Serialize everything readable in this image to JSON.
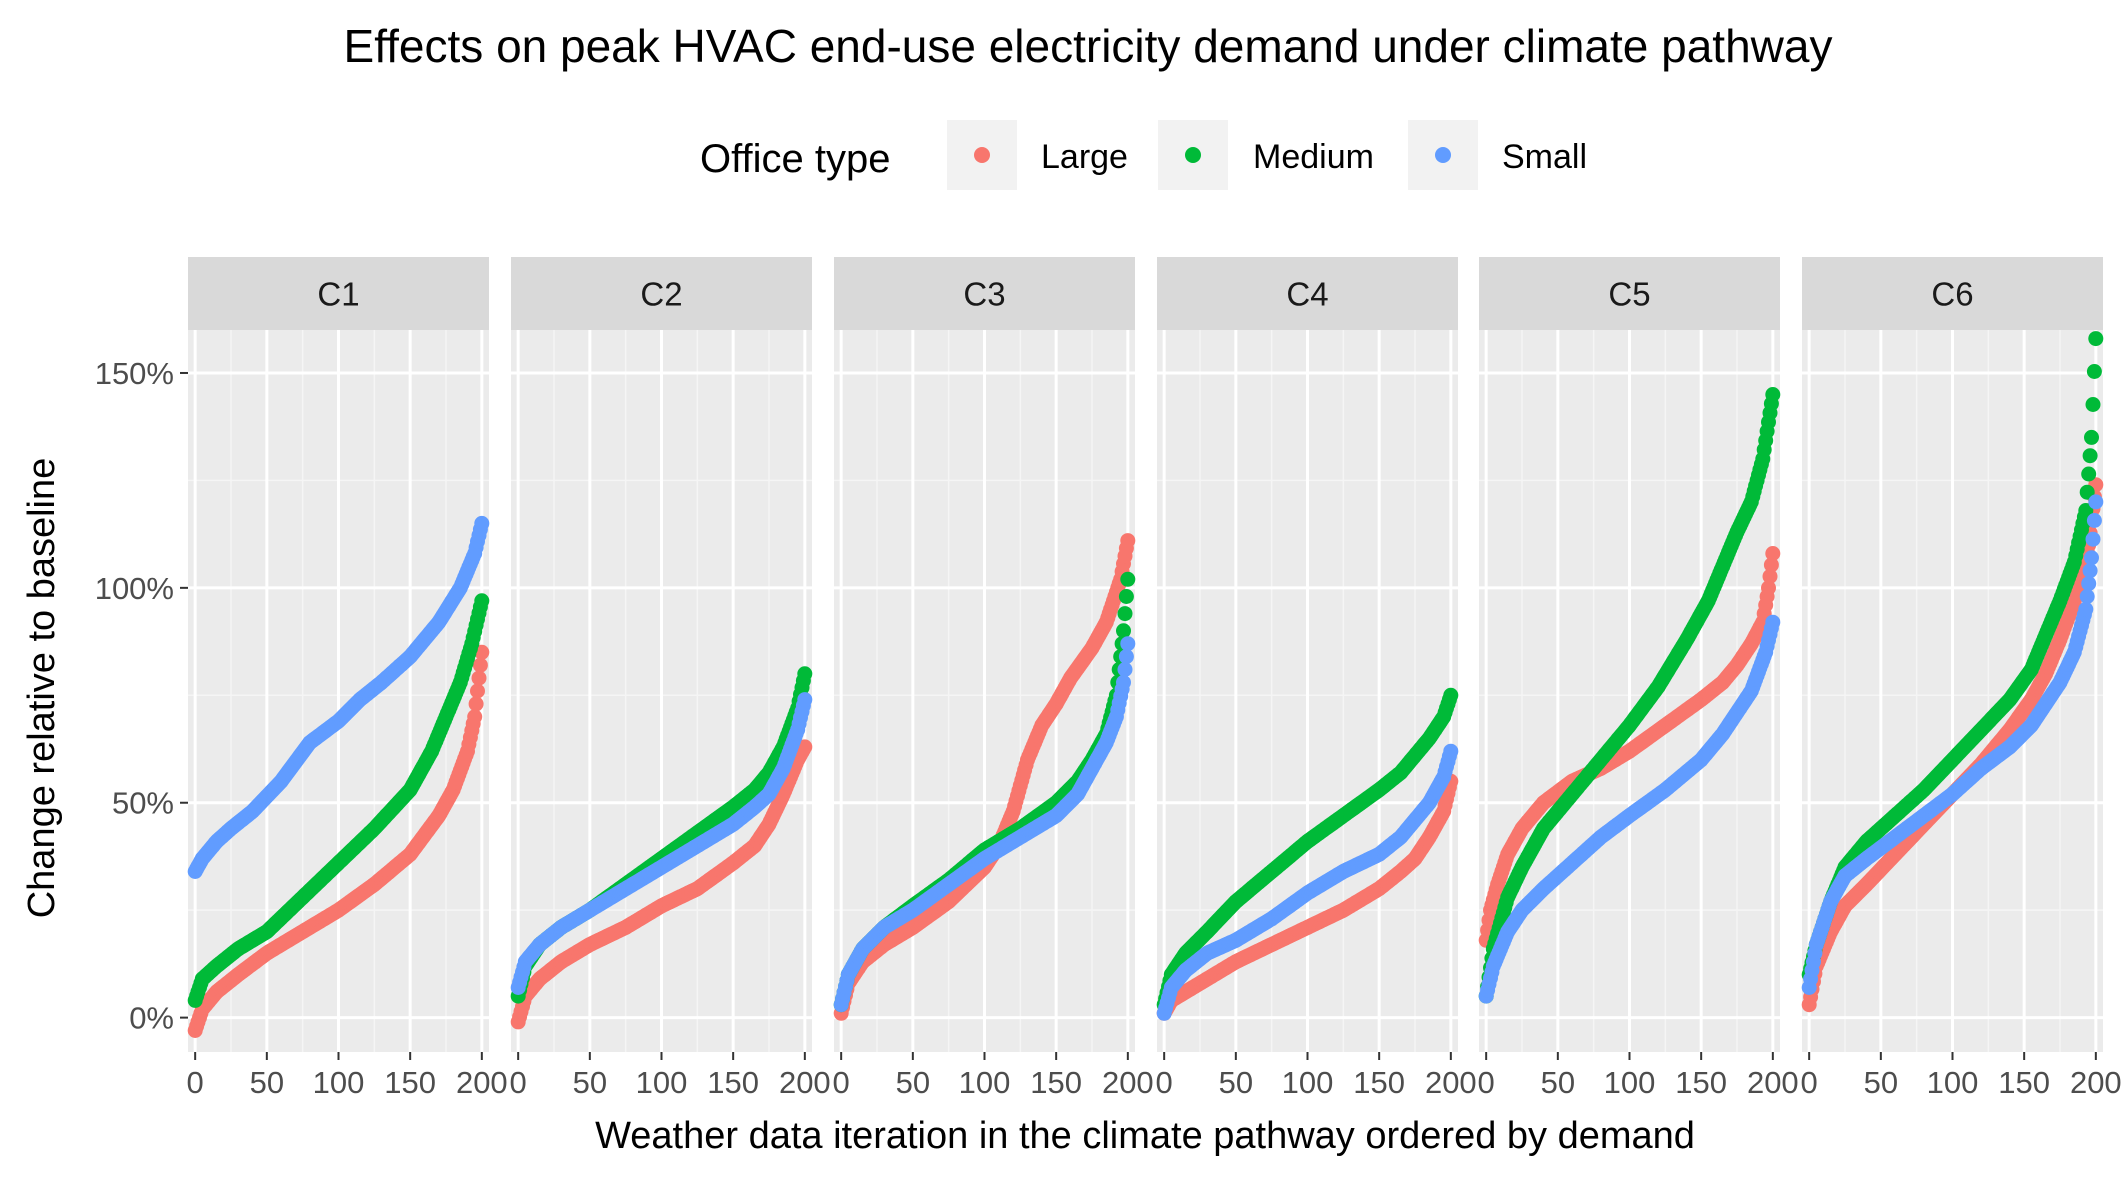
{
  "chart_data": {
    "type": "scatter",
    "title": "Effects on peak HVAC end-use electricity demand under climate pathway",
    "xlabel": "Weather data iteration in the climate pathway ordered by demand",
    "ylabel": "Change relative to baseline",
    "xlim": [
      -5,
      205
    ],
    "ylim": [
      -8,
      160
    ],
    "x_ticks": [
      0,
      50,
      100,
      150,
      200
    ],
    "x_tick_labels": [
      "0",
      "50",
      "100",
      "150",
      "200"
    ],
    "y_ticks": [
      0,
      50,
      100,
      150
    ],
    "y_tick_labels": [
      "0%",
      "50%",
      "100%",
      "150%"
    ],
    "grid": true,
    "legend": {
      "title": "Office type",
      "position": "top",
      "entries": [
        "Large",
        "Medium",
        "Small"
      ]
    },
    "facets": [
      "C1",
      "C2",
      "C3",
      "C4",
      "C5",
      "C6"
    ],
    "colors": {
      "Large": "#F8766D",
      "Medium": "#00BA38",
      "Small": "#619CFF"
    },
    "panel_background": "#EBEBEB",
    "strip_background": "#D9D9D9",
    "series": [
      {
        "facet": "C1",
        "name": "Large",
        "points": [
          [
            0,
            -3
          ],
          [
            5,
            2
          ],
          [
            15,
            6
          ],
          [
            30,
            10
          ],
          [
            50,
            15
          ],
          [
            75,
            20
          ],
          [
            100,
            25
          ],
          [
            125,
            31
          ],
          [
            150,
            38
          ],
          [
            170,
            47
          ],
          [
            180,
            53
          ],
          [
            190,
            62
          ],
          [
            195,
            70
          ],
          [
            200,
            85
          ]
        ]
      },
      {
        "facet": "C1",
        "name": "Medium",
        "points": [
          [
            0,
            4
          ],
          [
            5,
            9
          ],
          [
            15,
            12
          ],
          [
            30,
            16
          ],
          [
            50,
            20
          ],
          [
            75,
            28
          ],
          [
            100,
            36
          ],
          [
            125,
            44
          ],
          [
            150,
            53
          ],
          [
            165,
            62
          ],
          [
            175,
            70
          ],
          [
            185,
            78
          ],
          [
            193,
            87
          ],
          [
            200,
            97
          ]
        ]
      },
      {
        "facet": "C1",
        "name": "Small",
        "points": [
          [
            0,
            34
          ],
          [
            5,
            37
          ],
          [
            15,
            41
          ],
          [
            25,
            44
          ],
          [
            40,
            48
          ],
          [
            60,
            55
          ],
          [
            80,
            64
          ],
          [
            100,
            69
          ],
          [
            115,
            74
          ],
          [
            130,
            78
          ],
          [
            150,
            84
          ],
          [
            170,
            92
          ],
          [
            185,
            100
          ],
          [
            195,
            108
          ],
          [
            200,
            115
          ]
        ]
      },
      {
        "facet": "C2",
        "name": "Large",
        "points": [
          [
            0,
            -1
          ],
          [
            5,
            5
          ],
          [
            15,
            9
          ],
          [
            30,
            13
          ],
          [
            50,
            17
          ],
          [
            75,
            21
          ],
          [
            100,
            26
          ],
          [
            125,
            30
          ],
          [
            150,
            36
          ],
          [
            165,
            40
          ],
          [
            175,
            45
          ],
          [
            185,
            52
          ],
          [
            195,
            60
          ],
          [
            200,
            63
          ]
        ]
      },
      {
        "facet": "C2",
        "name": "Medium",
        "points": [
          [
            0,
            5
          ],
          [
            5,
            12
          ],
          [
            15,
            17
          ],
          [
            30,
            21
          ],
          [
            50,
            25
          ],
          [
            75,
            31
          ],
          [
            100,
            37
          ],
          [
            125,
            43
          ],
          [
            150,
            49
          ],
          [
            165,
            53
          ],
          [
            175,
            57
          ],
          [
            185,
            63
          ],
          [
            195,
            72
          ],
          [
            200,
            80
          ]
        ]
      },
      {
        "facet": "C2",
        "name": "Small",
        "points": [
          [
            0,
            7
          ],
          [
            5,
            13
          ],
          [
            15,
            17
          ],
          [
            30,
            21
          ],
          [
            50,
            25
          ],
          [
            75,
            30
          ],
          [
            100,
            35
          ],
          [
            125,
            40
          ],
          [
            150,
            45
          ],
          [
            165,
            49
          ],
          [
            175,
            52
          ],
          [
            185,
            58
          ],
          [
            195,
            67
          ],
          [
            200,
            74
          ]
        ]
      },
      {
        "facet": "C3",
        "name": "Large",
        "points": [
          [
            0,
            1
          ],
          [
            5,
            8
          ],
          [
            15,
            13
          ],
          [
            30,
            17
          ],
          [
            50,
            21
          ],
          [
            75,
            27
          ],
          [
            100,
            35
          ],
          [
            110,
            40
          ],
          [
            120,
            48
          ],
          [
            130,
            60
          ],
          [
            140,
            68
          ],
          [
            150,
            73
          ],
          [
            160,
            79
          ],
          [
            175,
            86
          ],
          [
            185,
            92
          ],
          [
            195,
            102
          ],
          [
            200,
            111
          ]
        ]
      },
      {
        "facet": "C3",
        "name": "Medium",
        "points": [
          [
            0,
            3
          ],
          [
            5,
            10
          ],
          [
            15,
            16
          ],
          [
            30,
            21
          ],
          [
            50,
            26
          ],
          [
            75,
            32
          ],
          [
            100,
            39
          ],
          [
            125,
            44
          ],
          [
            150,
            50
          ],
          [
            165,
            55
          ],
          [
            175,
            60
          ],
          [
            185,
            66
          ],
          [
            192,
            75
          ],
          [
            197,
            90
          ],
          [
            200,
            102
          ]
        ]
      },
      {
        "facet": "C3",
        "name": "Small",
        "points": [
          [
            0,
            3
          ],
          [
            5,
            10
          ],
          [
            15,
            16
          ],
          [
            30,
            21
          ],
          [
            50,
            25
          ],
          [
            75,
            31
          ],
          [
            100,
            37
          ],
          [
            125,
            42
          ],
          [
            150,
            47
          ],
          [
            165,
            52
          ],
          [
            175,
            58
          ],
          [
            185,
            64
          ],
          [
            192,
            70
          ],
          [
            197,
            78
          ],
          [
            200,
            87
          ]
        ]
      },
      {
        "facet": "C4",
        "name": "Large",
        "points": [
          [
            0,
            1
          ],
          [
            5,
            4
          ],
          [
            15,
            6
          ],
          [
            30,
            9
          ],
          [
            50,
            13
          ],
          [
            75,
            17
          ],
          [
            100,
            21
          ],
          [
            125,
            25
          ],
          [
            150,
            30
          ],
          [
            165,
            34
          ],
          [
            175,
            37
          ],
          [
            185,
            42
          ],
          [
            195,
            48
          ],
          [
            200,
            55
          ]
        ]
      },
      {
        "facet": "C4",
        "name": "Medium",
        "points": [
          [
            0,
            3
          ],
          [
            5,
            10
          ],
          [
            15,
            15
          ],
          [
            30,
            20
          ],
          [
            50,
            27
          ],
          [
            75,
            34
          ],
          [
            100,
            41
          ],
          [
            125,
            47
          ],
          [
            150,
            53
          ],
          [
            165,
            57
          ],
          [
            175,
            61
          ],
          [
            185,
            65
          ],
          [
            195,
            70
          ],
          [
            200,
            75
          ]
        ]
      },
      {
        "facet": "C4",
        "name": "Small",
        "points": [
          [
            0,
            1
          ],
          [
            5,
            7
          ],
          [
            15,
            11
          ],
          [
            30,
            15
          ],
          [
            50,
            18
          ],
          [
            75,
            23
          ],
          [
            100,
            29
          ],
          [
            125,
            34
          ],
          [
            150,
            38
          ],
          [
            165,
            42
          ],
          [
            175,
            46
          ],
          [
            185,
            50
          ],
          [
            195,
            56
          ],
          [
            200,
            62
          ]
        ]
      },
      {
        "facet": "C5",
        "name": "Large",
        "points": [
          [
            0,
            18
          ],
          [
            3,
            25
          ],
          [
            8,
            31
          ],
          [
            15,
            38
          ],
          [
            25,
            44
          ],
          [
            40,
            50
          ],
          [
            60,
            55
          ],
          [
            80,
            58
          ],
          [
            100,
            62
          ],
          [
            125,
            68
          ],
          [
            150,
            74
          ],
          [
            165,
            78
          ],
          [
            175,
            82
          ],
          [
            185,
            87
          ],
          [
            193,
            92
          ],
          [
            197,
            100
          ],
          [
            200,
            108
          ]
        ]
      },
      {
        "facet": "C5",
        "name": "Medium",
        "points": [
          [
            0,
            5
          ],
          [
            5,
            16
          ],
          [
            15,
            28
          ],
          [
            25,
            35
          ],
          [
            40,
            44
          ],
          [
            60,
            52
          ],
          [
            80,
            60
          ],
          [
            100,
            68
          ],
          [
            120,
            77
          ],
          [
            140,
            88
          ],
          [
            155,
            97
          ],
          [
            165,
            105
          ],
          [
            175,
            113
          ],
          [
            185,
            120
          ],
          [
            193,
            130
          ],
          [
            200,
            145
          ]
        ]
      },
      {
        "facet": "C5",
        "name": "Small",
        "points": [
          [
            0,
            5
          ],
          [
            5,
            12
          ],
          [
            15,
            20
          ],
          [
            25,
            25
          ],
          [
            40,
            30
          ],
          [
            60,
            36
          ],
          [
            80,
            42
          ],
          [
            100,
            47
          ],
          [
            125,
            53
          ],
          [
            150,
            60
          ],
          [
            165,
            66
          ],
          [
            175,
            71
          ],
          [
            185,
            76
          ],
          [
            195,
            85
          ],
          [
            200,
            92
          ]
        ]
      },
      {
        "facet": "C6",
        "name": "Large",
        "points": [
          [
            0,
            3
          ],
          [
            5,
            12
          ],
          [
            15,
            20
          ],
          [
            25,
            26
          ],
          [
            40,
            31
          ],
          [
            60,
            38
          ],
          [
            80,
            45
          ],
          [
            100,
            52
          ],
          [
            120,
            59
          ],
          [
            140,
            67
          ],
          [
            155,
            74
          ],
          [
            165,
            80
          ],
          [
            175,
            88
          ],
          [
            185,
            97
          ],
          [
            195,
            110
          ],
          [
            200,
            124
          ]
        ]
      },
      {
        "facet": "C6",
        "name": "Medium",
        "points": [
          [
            0,
            10
          ],
          [
            5,
            17
          ],
          [
            15,
            27
          ],
          [
            25,
            35
          ],
          [
            40,
            41
          ],
          [
            60,
            47
          ],
          [
            80,
            53
          ],
          [
            100,
            60
          ],
          [
            120,
            67
          ],
          [
            140,
            74
          ],
          [
            155,
            81
          ],
          [
            165,
            89
          ],
          [
            175,
            97
          ],
          [
            185,
            106
          ],
          [
            193,
            118
          ],
          [
            197,
            135
          ],
          [
            200,
            158
          ]
        ]
      },
      {
        "facet": "C6",
        "name": "Small",
        "points": [
          [
            0,
            7
          ],
          [
            5,
            17
          ],
          [
            15,
            27
          ],
          [
            25,
            33
          ],
          [
            40,
            37
          ],
          [
            60,
            42
          ],
          [
            80,
            47
          ],
          [
            100,
            52
          ],
          [
            120,
            58
          ],
          [
            140,
            63
          ],
          [
            155,
            68
          ],
          [
            165,
            73
          ],
          [
            175,
            78
          ],
          [
            185,
            85
          ],
          [
            193,
            95
          ],
          [
            197,
            107
          ],
          [
            200,
            120
          ]
        ]
      }
    ]
  }
}
